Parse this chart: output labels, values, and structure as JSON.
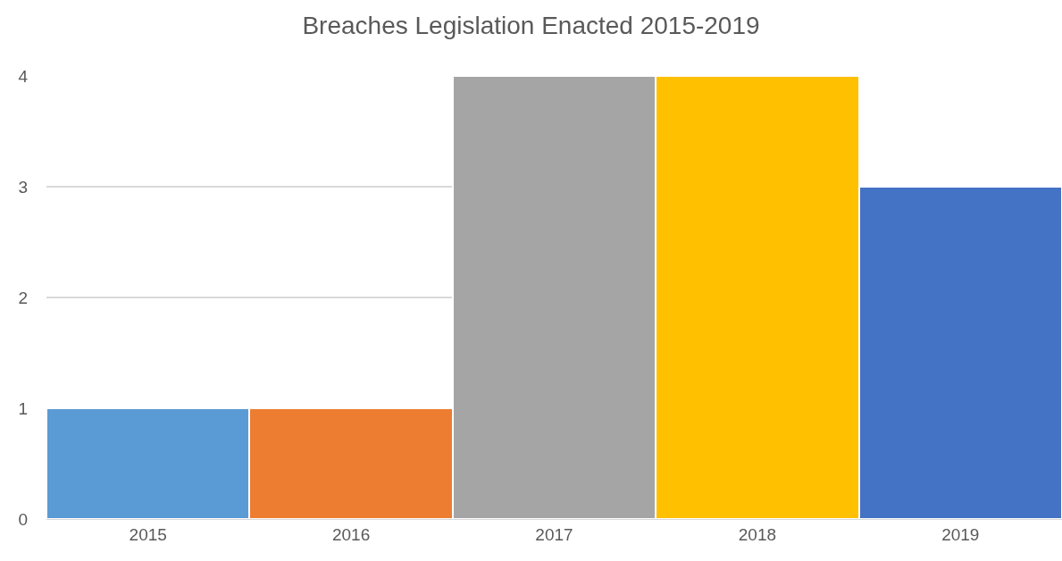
{
  "chart_data": {
    "type": "bar",
    "title": "Breaches Legislation Enacted 2015-2019",
    "categories": [
      "2015",
      "2016",
      "2017",
      "2018",
      "2019"
    ],
    "values": [
      1,
      1,
      4,
      4,
      3
    ],
    "colors": [
      "#5b9bd5",
      "#ed7d31",
      "#a5a5a5",
      "#ffc000",
      "#4472c4"
    ],
    "ylim": [
      0,
      4
    ],
    "yticks": [
      0,
      1,
      2,
      3,
      4
    ],
    "grid": "y"
  }
}
